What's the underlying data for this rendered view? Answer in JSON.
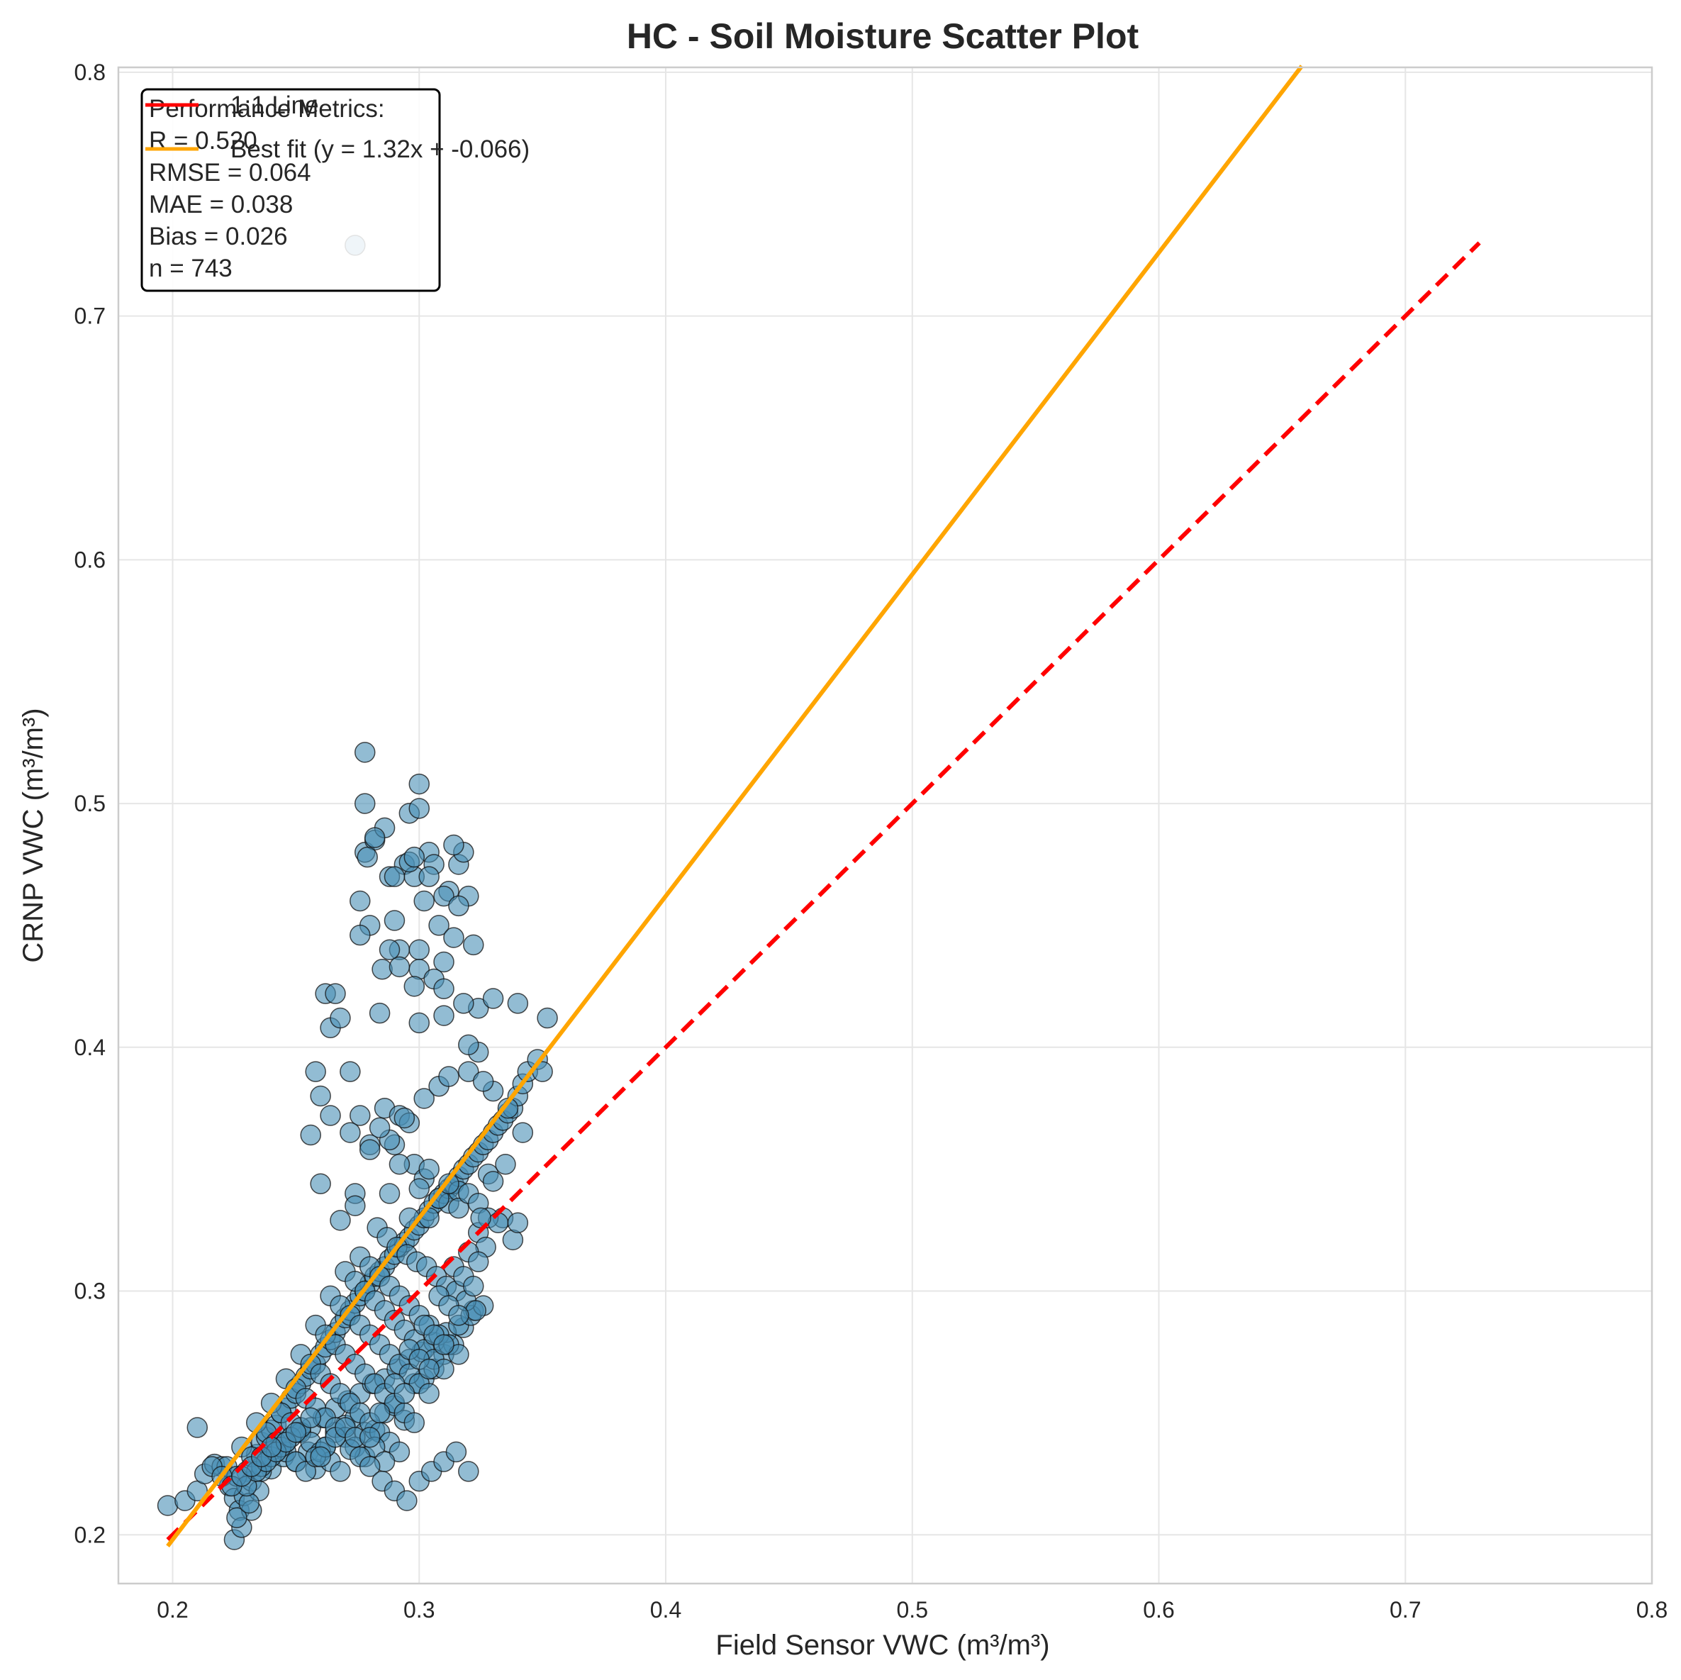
{
  "chart_data": {
    "type": "scatter",
    "title": "HC - Soil Moisture Scatter Plot",
    "xlabel": "Field Sensor VWC (m³/m³)",
    "ylabel": "CRNP VWC (m³/m³)",
    "xlim": [
      0.178,
      0.8
    ],
    "ylim": [
      0.18,
      0.802
    ],
    "xticks": [
      0.2,
      0.3,
      0.4,
      0.5,
      0.6,
      0.7,
      0.8
    ],
    "yticks": [
      0.2,
      0.3,
      0.4,
      0.5,
      0.6,
      0.7,
      0.8
    ],
    "xtick_labels": [
      "0.2",
      "0.3",
      "0.4",
      "0.5",
      "0.6",
      "0.7",
      "0.8"
    ],
    "ytick_labels": [
      "0.2",
      "0.3",
      "0.4",
      "0.5",
      "0.6",
      "0.7",
      "0.8"
    ],
    "grid": true,
    "legend_position": "top-left",
    "colors": {
      "points": "#4a90b5",
      "point_edge": "#111111",
      "one_to_one": "#ff0000",
      "best_fit": "#ffa500",
      "grid": "#e6e6e6",
      "spine": "#cccccc"
    },
    "legend": [
      {
        "label": "1:1 Line",
        "color": "#ff0000",
        "style": "dashed"
      },
      {
        "label": "Best fit (y = 1.32x + -0.066)",
        "color": "#ffa500",
        "style": "solid"
      }
    ],
    "one_to_one_line": {
      "x": [
        0.198,
        0.73
      ],
      "y": [
        0.198,
        0.73
      ]
    },
    "best_fit_line": {
      "slope": 1.32,
      "intercept": -0.066,
      "x_range": [
        0.198,
        0.658
      ]
    },
    "metrics": {
      "header": "Performance Metrics:",
      "lines": [
        "R = 0.520",
        "RMSE = 0.064",
        "MAE = 0.038",
        "Bias = 0.026",
        "n = 743"
      ]
    },
    "sample_count": 743,
    "points_x": [
      0.198,
      0.205,
      0.21,
      0.213,
      0.217,
      0.22,
      0.223,
      0.225,
      0.227,
      0.229,
      0.23,
      0.232,
      0.234,
      0.236,
      0.238,
      0.24,
      0.242,
      0.244,
      0.246,
      0.248,
      0.25,
      0.252,
      0.254,
      0.256,
      0.258,
      0.26,
      0.262,
      0.264,
      0.266,
      0.268,
      0.27,
      0.272,
      0.274,
      0.276,
      0.278,
      0.28,
      0.282,
      0.284,
      0.286,
      0.288,
      0.29,
      0.292,
      0.294,
      0.296,
      0.298,
      0.3,
      0.302,
      0.304,
      0.306,
      0.308,
      0.31,
      0.312,
      0.314,
      0.316,
      0.318,
      0.32,
      0.322,
      0.324,
      0.326,
      0.328,
      0.33,
      0.332,
      0.334,
      0.336,
      0.338,
      0.34,
      0.342,
      0.344,
      0.348,
      0.352,
      0.21,
      0.225,
      0.228,
      0.232,
      0.235,
      0.24,
      0.245,
      0.25,
      0.255,
      0.258,
      0.262,
      0.266,
      0.27,
      0.274,
      0.278,
      0.282,
      0.286,
      0.29,
      0.294,
      0.298,
      0.302,
      0.306,
      0.31,
      0.314,
      0.318,
      0.322,
      0.226,
      0.231,
      0.236,
      0.241,
      0.246,
      0.251,
      0.256,
      0.261,
      0.266,
      0.271,
      0.276,
      0.281,
      0.286,
      0.291,
      0.296,
      0.301,
      0.306,
      0.311,
      0.316,
      0.321,
      0.326,
      0.256,
      0.258,
      0.26,
      0.262,
      0.264,
      0.266,
      0.268,
      0.272,
      0.274,
      0.276,
      0.278,
      0.28,
      0.282,
      0.284,
      0.286,
      0.288,
      0.29,
      0.292,
      0.294,
      0.296,
      0.298,
      0.3,
      0.302,
      0.304,
      0.306,
      0.308,
      0.31,
      0.312,
      0.314,
      0.316,
      0.318,
      0.32,
      0.322,
      0.324,
      0.278,
      0.278,
      0.282,
      0.288,
      0.296,
      0.3,
      0.3,
      0.29,
      0.298,
      0.304,
      0.31,
      0.314,
      0.316,
      0.276,
      0.279,
      0.285,
      0.292,
      0.3,
      0.306,
      0.31,
      0.318,
      0.298,
      0.274,
      0.276,
      0.28,
      0.286,
      0.29,
      0.292,
      0.296,
      0.302,
      0.308,
      0.312,
      0.32,
      0.324,
      0.3,
      0.31,
      0.32,
      0.33,
      0.34,
      0.35,
      0.33,
      0.336,
      0.342,
      0.326,
      0.264,
      0.272,
      0.28,
      0.288,
      0.298,
      0.302,
      0.312,
      0.26,
      0.268,
      0.274,
      0.284,
      0.294,
      0.304,
      0.316,
      0.324,
      0.328,
      0.334,
      0.338,
      0.288,
      0.292,
      0.296,
      0.3,
      0.304,
      0.308,
      0.312,
      0.316,
      0.32,
      0.324,
      0.328,
      0.332,
      0.283,
      0.287,
      0.291,
      0.295,
      0.299,
      0.303,
      0.307,
      0.311,
      0.315,
      0.319,
      0.323,
      0.327,
      0.276,
      0.28,
      0.284,
      0.288,
      0.292,
      0.296,
      0.3,
      0.304,
      0.308,
      0.312,
      0.316,
      0.32,
      0.324,
      0.27,
      0.274,
      0.278,
      0.282,
      0.286,
      0.29,
      0.294,
      0.298,
      0.302,
      0.306,
      0.31,
      0.314,
      0.318,
      0.322,
      0.264,
      0.268,
      0.272,
      0.276,
      0.28,
      0.284,
      0.288,
      0.292,
      0.296,
      0.3,
      0.304,
      0.308,
      0.312,
      0.316,
      0.258,
      0.262,
      0.266,
      0.27,
      0.274,
      0.278,
      0.282,
      0.286,
      0.29,
      0.294,
      0.298,
      0.302,
      0.306,
      0.31,
      0.252,
      0.256,
      0.26,
      0.264,
      0.268,
      0.272,
      0.276,
      0.28,
      0.284,
      0.288,
      0.292,
      0.296,
      0.3,
      0.304,
      0.246,
      0.25,
      0.254,
      0.258,
      0.262,
      0.266,
      0.27,
      0.274,
      0.278,
      0.282,
      0.286,
      0.29,
      0.294,
      0.24,
      0.244,
      0.248,
      0.252,
      0.256,
      0.26,
      0.264,
      0.268,
      0.272,
      0.276,
      0.28,
      0.284,
      0.234,
      0.238,
      0.242,
      0.246,
      0.25,
      0.254,
      0.258,
      0.262,
      0.266,
      0.27,
      0.274,
      0.228,
      0.232,
      0.236,
      0.24,
      0.244,
      0.248,
      0.252,
      0.256,
      0.26,
      0.222,
      0.226,
      0.23,
      0.234,
      0.238,
      0.242,
      0.246,
      0.25,
      0.216,
      0.22,
      0.224,
      0.228,
      0.232,
      0.236,
      0.24,
      0.28,
      0.285,
      0.29,
      0.295,
      0.3,
      0.305,
      0.31,
      0.315,
      0.32,
      0.325,
      0.33,
      0.335,
      0.34
    ],
    "points_y": [
      0.212,
      0.214,
      0.218,
      0.225,
      0.229,
      0.228,
      0.22,
      0.215,
      0.21,
      0.216,
      0.226,
      0.222,
      0.233,
      0.238,
      0.24,
      0.243,
      0.245,
      0.25,
      0.252,
      0.256,
      0.258,
      0.262,
      0.265,
      0.268,
      0.27,
      0.274,
      0.277,
      0.28,
      0.283,
      0.286,
      0.289,
      0.292,
      0.295,
      0.298,
      0.3,
      0.303,
      0.306,
      0.308,
      0.31,
      0.313,
      0.315,
      0.318,
      0.32,
      0.322,
      0.325,
      0.327,
      0.33,
      0.333,
      0.336,
      0.338,
      0.34,
      0.342,
      0.344,
      0.347,
      0.35,
      0.352,
      0.355,
      0.357,
      0.36,
      0.362,
      0.365,
      0.368,
      0.37,
      0.373,
      0.375,
      0.38,
      0.385,
      0.39,
      0.395,
      0.412,
      0.244,
      0.198,
      0.203,
      0.21,
      0.218,
      0.227,
      0.232,
      0.23,
      0.234,
      0.227,
      0.236,
      0.242,
      0.245,
      0.248,
      0.242,
      0.243,
      0.25,
      0.253,
      0.247,
      0.262,
      0.264,
      0.268,
      0.274,
      0.278,
      0.285,
      0.292,
      0.207,
      0.213,
      0.226,
      0.235,
      0.238,
      0.242,
      0.244,
      0.248,
      0.252,
      0.255,
      0.258,
      0.262,
      0.264,
      0.268,
      0.272,
      0.275,
      0.279,
      0.283,
      0.286,
      0.29,
      0.294,
      0.364,
      0.39,
      0.38,
      0.422,
      0.408,
      0.422,
      0.412,
      0.39,
      0.34,
      0.46,
      0.48,
      0.45,
      0.485,
      0.414,
      0.49,
      0.47,
      0.452,
      0.44,
      0.475,
      0.496,
      0.47,
      0.44,
      0.46,
      0.48,
      0.475,
      0.45,
      0.435,
      0.464,
      0.445,
      0.475,
      0.48,
      0.462,
      0.442,
      0.416,
      0.521,
      0.5,
      0.486,
      0.44,
      0.476,
      0.498,
      0.508,
      0.47,
      0.478,
      0.47,
      0.462,
      0.483,
      0.458,
      0.446,
      0.478,
      0.432,
      0.433,
      0.432,
      0.428,
      0.424,
      0.418,
      0.425,
      0.729,
      0.372,
      0.36,
      0.375,
      0.36,
      0.372,
      0.369,
      0.379,
      0.384,
      0.388,
      0.39,
      0.398,
      0.41,
      0.413,
      0.401,
      0.42,
      0.418,
      0.39,
      0.382,
      0.375,
      0.365,
      0.386,
      0.372,
      0.365,
      0.358,
      0.362,
      0.352,
      0.346,
      0.336,
      0.344,
      0.329,
      0.335,
      0.367,
      0.371,
      0.33,
      0.341,
      0.324,
      0.348,
      0.33,
      0.321,
      0.34,
      0.352,
      0.33,
      0.342,
      0.35,
      0.338,
      0.344,
      0.334,
      0.34,
      0.336,
      0.33,
      0.328,
      0.326,
      0.322,
      0.318,
      0.315,
      0.312,
      0.31,
      0.306,
      0.302,
      0.3,
      0.296,
      0.292,
      0.318,
      0.314,
      0.31,
      0.306,
      0.302,
      0.298,
      0.294,
      0.29,
      0.286,
      0.282,
      0.278,
      0.274,
      0.316,
      0.312,
      0.308,
      0.304,
      0.3,
      0.296,
      0.292,
      0.288,
      0.284,
      0.28,
      0.276,
      0.272,
      0.268,
      0.31,
      0.306,
      0.302,
      0.298,
      0.294,
      0.29,
      0.286,
      0.282,
      0.278,
      0.274,
      0.27,
      0.266,
      0.262,
      0.258,
      0.298,
      0.294,
      0.29,
      0.286,
      0.282,
      0.278,
      0.274,
      0.27,
      0.266,
      0.262,
      0.258,
      0.254,
      0.25,
      0.246,
      0.286,
      0.282,
      0.278,
      0.274,
      0.27,
      0.266,
      0.262,
      0.258,
      0.254,
      0.25,
      0.246,
      0.242,
      0.238,
      0.234,
      0.276,
      0.272,
      0.268,
      0.264,
      0.26,
      0.256,
      0.252,
      0.248,
      0.244,
      0.24,
      0.236,
      0.232,
      0.236,
      0.23,
      0.262,
      0.258,
      0.254,
      0.25,
      0.246,
      0.242,
      0.238,
      0.234,
      0.23,
      0.226,
      0.235,
      0.232,
      0.228,
      0.25,
      0.246,
      0.242,
      0.238,
      0.234,
      0.23,
      0.226,
      0.232,
      0.236,
      0.24,
      0.244,
      0.24,
      0.236,
      0.232,
      0.228,
      0.232,
      0.236,
      0.24,
      0.244,
      0.248,
      0.232,
      0.228,
      0.224,
      0.22,
      0.226,
      0.23,
      0.234,
      0.238,
      0.242,
      0.228,
      0.224,
      0.22,
      0.224,
      0.228,
      0.232,
      0.236,
      0.24,
      0.222,
      0.218,
      0.214,
      0.222,
      0.226,
      0.23,
      0.234,
      0.226,
      0.33,
      0.345,
      0.352,
      0.328,
      0.366,
      0.356,
      0.344,
      0.334,
      0.326,
      0.344,
      0.352,
      0.36,
      0.364
    ]
  }
}
